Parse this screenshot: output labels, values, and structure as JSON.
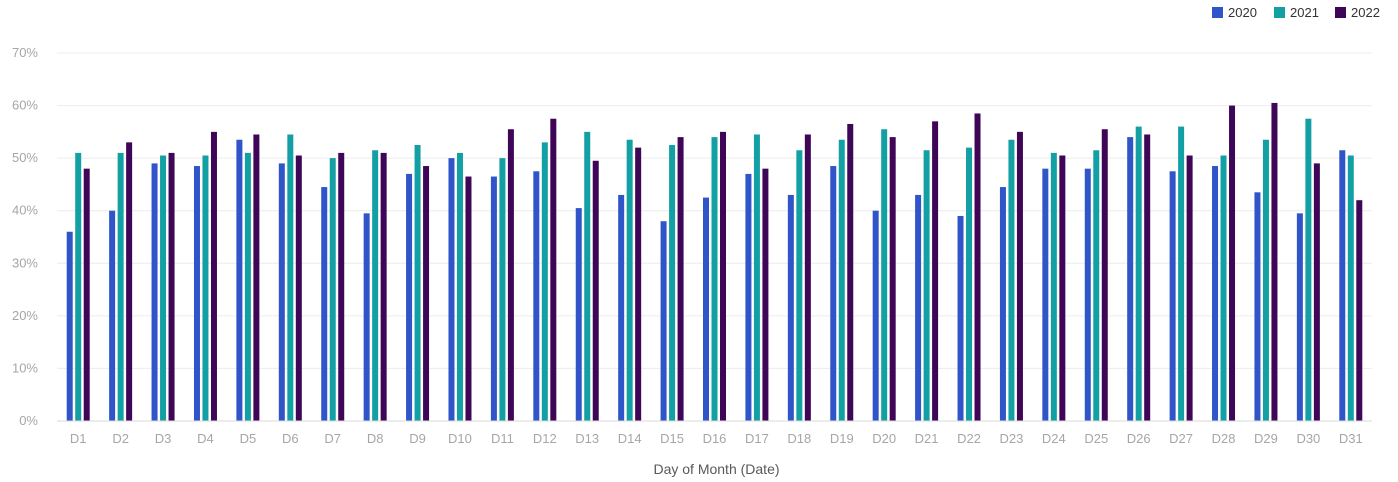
{
  "chart_data": {
    "type": "bar",
    "xlabel": "Day of Month (Date)",
    "ylabel": "",
    "ylim": [
      0,
      70
    ],
    "y_ticks": [
      "0%",
      "10%",
      "20%",
      "30%",
      "40%",
      "50%",
      "60%",
      "70%"
    ],
    "grid": true,
    "legend_position": "top-right",
    "categories": [
      "D1",
      "D2",
      "D3",
      "D4",
      "D5",
      "D6",
      "D7",
      "D8",
      "D9",
      "D10",
      "D11",
      "D12",
      "D13",
      "D14",
      "D15",
      "D16",
      "D17",
      "D18",
      "D19",
      "D20",
      "D21",
      "D22",
      "D23",
      "D24",
      "D25",
      "D26",
      "D27",
      "D28",
      "D29",
      "D30",
      "D31"
    ],
    "series": [
      {
        "name": "2020",
        "color": "#2f55c9",
        "values": [
          36,
          40,
          49,
          48.5,
          53.5,
          49,
          44.5,
          39.5,
          47,
          50,
          46.5,
          47.5,
          40.5,
          43,
          38,
          42.5,
          47,
          43,
          48.5,
          40,
          43,
          39,
          44.5,
          48,
          48,
          54,
          47.5,
          48.5,
          43.5,
          39.5,
          51.5
        ]
      },
      {
        "name": "2021",
        "color": "#13a0a4",
        "values": [
          51,
          51,
          50.5,
          50.5,
          51,
          54.5,
          50,
          51.5,
          52.5,
          51,
          50,
          53,
          55,
          53.5,
          52.5,
          54,
          54.5,
          51.5,
          53.5,
          55.5,
          51.5,
          52,
          53.5,
          51,
          51.5,
          56,
          56,
          50.5,
          53.5,
          57.5,
          50.5
        ]
      },
      {
        "name": "2022",
        "color": "#3f0556",
        "values": [
          48,
          53,
          51,
          55,
          54.5,
          50.5,
          51,
          51,
          48.5,
          46.5,
          55.5,
          57.5,
          49.5,
          52,
          54,
          55,
          48,
          54.5,
          56.5,
          54,
          57,
          58.5,
          55,
          50.5,
          55.5,
          54.5,
          50.5,
          60,
          60.5,
          49,
          42
        ]
      }
    ]
  }
}
